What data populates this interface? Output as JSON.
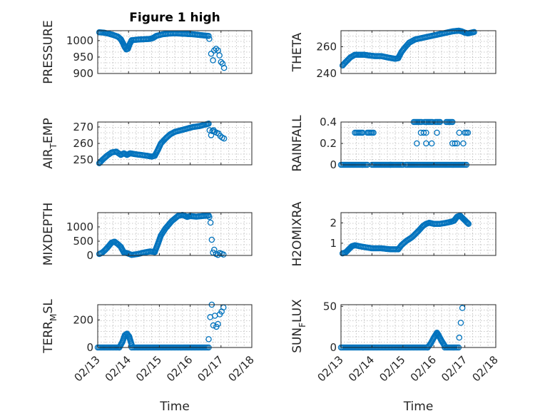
{
  "figure": {
    "title": "Figure 1 high"
  },
  "chart_data": [
    {
      "id": "pressure",
      "type": "scatter",
      "title": "Figure 1 high",
      "xlabel": "",
      "ylabel": "PRESSURE",
      "ylabel_sub": "",
      "ylabel_tail": "",
      "xlim": [
        0,
        5
      ],
      "ylim": [
        900,
        1030
      ],
      "yticks": [
        900,
        950,
        1000
      ],
      "ytick_labels": [
        "900",
        "950",
        "1000"
      ],
      "show_xtick_labels": false,
      "grid": true,
      "marker_color": "#0072bd",
      "segments": [
        {
          "x": [
            0.05,
            0.2,
            0.35,
            0.5,
            0.65,
            0.75
          ],
          "y": [
            1025,
            1024,
            1021,
            1017,
            1012,
            1004
          ]
        },
        {
          "x": [
            0.75,
            0.82,
            0.88,
            0.93,
            0.98,
            1.03
          ],
          "y": [
            1004,
            992,
            980,
            973,
            975,
            988
          ]
        },
        {
          "x": [
            1.03,
            1.1,
            1.3,
            1.5,
            1.7,
            1.8
          ],
          "y": [
            988,
            1001,
            1003,
            1004,
            1005,
            1008
          ]
        },
        {
          "x": [
            1.8,
            1.9,
            2.1,
            2.3,
            2.5,
            2.7,
            2.9,
            3.1,
            3.3,
            3.6
          ],
          "y": [
            1008,
            1014,
            1019,
            1021,
            1022,
            1021,
            1020,
            1019,
            1017,
            1014
          ]
        }
      ],
      "points": [
        {
          "x": 3.62,
          "y": 1005
        },
        {
          "x": 3.68,
          "y": 960
        },
        {
          "x": 3.74,
          "y": 940
        },
        {
          "x": 3.78,
          "y": 970
        },
        {
          "x": 3.84,
          "y": 975
        },
        {
          "x": 3.9,
          "y": 970
        },
        {
          "x": 3.95,
          "y": 955
        },
        {
          "x": 4.0,
          "y": 935
        },
        {
          "x": 4.05,
          "y": 930
        },
        {
          "x": 4.1,
          "y": 917
        }
      ]
    },
    {
      "id": "theta",
      "type": "scatter",
      "title": "",
      "xlabel": "",
      "ylabel": "THETA",
      "ylabel_sub": "",
      "ylabel_tail": "",
      "xlim": [
        0,
        5
      ],
      "ylim": [
        240,
        272
      ],
      "yticks": [
        240,
        260
      ],
      "ytick_labels": [
        "240",
        "260"
      ],
      "show_xtick_labels": false,
      "grid": true,
      "marker_color": "#0072bd",
      "segments": [
        {
          "x": [
            0.05,
            0.15,
            0.3,
            0.45,
            0.6,
            0.75,
            0.9,
            1.1,
            1.3,
            1.5,
            1.75,
            1.85
          ],
          "y": [
            246,
            248.5,
            252,
            254,
            254,
            254,
            253.5,
            253,
            253,
            252,
            251,
            251.5
          ]
        },
        {
          "x": [
            1.85,
            1.95,
            2.05,
            2.2,
            2.4,
            2.6,
            2.8,
            3.0,
            3.2,
            3.4,
            3.6,
            3.8,
            3.9,
            4.0,
            4.1,
            4.2,
            4.3
          ],
          "y": [
            251.5,
            256,
            259,
            263,
            265.5,
            266.5,
            267.5,
            268.5,
            269.5,
            270.5,
            271.5,
            272,
            271.5,
            270.5,
            270,
            270.5,
            271
          ]
        }
      ],
      "points": []
    },
    {
      "id": "airtemp",
      "type": "scatter",
      "title": "",
      "xlabel": "",
      "ylabel": "AIR",
      "ylabel_sub": "T",
      "ylabel_tail": "EMP",
      "xlim": [
        0,
        5
      ],
      "ylim": [
        247,
        273
      ],
      "yticks": [
        250,
        260,
        270
      ],
      "ytick_labels": [
        "250",
        "260",
        "270"
      ],
      "show_xtick_labels": false,
      "grid": true,
      "marker_color": "#0072bd",
      "segments": [
        {
          "x": [
            0.05,
            0.15,
            0.3,
            0.45,
            0.6,
            0.75,
            0.85,
            0.95,
            1.05,
            1.2,
            1.4,
            1.6,
            1.75,
            1.85
          ],
          "y": [
            248,
            250,
            252.5,
            254.5,
            255,
            253,
            254,
            253,
            254,
            253.5,
            253,
            252.5,
            252,
            252.5
          ]
        },
        {
          "x": [
            1.85,
            1.95,
            2.05,
            2.2,
            2.35,
            2.5,
            2.7,
            2.9,
            3.1,
            3.3,
            3.5,
            3.6
          ],
          "y": [
            252.5,
            256,
            260,
            263,
            265.5,
            267,
            268,
            269,
            270,
            270.5,
            271.5,
            272
          ]
        }
      ],
      "points": [
        {
          "x": 3.63,
          "y": 268
        },
        {
          "x": 3.68,
          "y": 265
        },
        {
          "x": 3.72,
          "y": 267.5
        },
        {
          "x": 3.76,
          "y": 268
        },
        {
          "x": 3.8,
          "y": 267
        },
        {
          "x": 3.86,
          "y": 266.5
        },
        {
          "x": 3.92,
          "y": 266
        },
        {
          "x": 3.98,
          "y": 264.5
        },
        {
          "x": 4.04,
          "y": 263.5
        },
        {
          "x": 4.1,
          "y": 263
        }
      ]
    },
    {
      "id": "rainfall",
      "type": "scatter",
      "title": "",
      "xlabel": "",
      "ylabel": "RAINFALL",
      "ylabel_sub": "",
      "ylabel_tail": "",
      "xlim": [
        0,
        5
      ],
      "ylim": [
        0,
        0.4
      ],
      "yticks": [
        0,
        0.2,
        0.4
      ],
      "ytick_labels": [
        "0",
        "0.2",
        "0.4"
      ],
      "show_xtick_labels": false,
      "grid": true,
      "marker_color": "#0072bd",
      "segments": [
        {
          "x": [
            0.0,
            0.85
          ],
          "y": [
            0,
            0
          ]
        },
        {
          "x": [
            1.0,
            1.6
          ],
          "y": [
            0,
            0
          ]
        },
        {
          "x": [
            1.6,
            2.0
          ],
          "y": [
            0,
            0
          ]
        },
        {
          "x": [
            2.1,
            3.5
          ],
          "y": [
            0,
            0
          ]
        },
        {
          "x": [
            3.55,
            4.05
          ],
          "y": [
            0,
            0
          ]
        },
        {
          "x": [
            0.45,
            0.7
          ],
          "y": [
            0.3,
            0.3
          ]
        },
        {
          "x": [
            0.85,
            1.05
          ],
          "y": [
            0.3,
            0.3
          ]
        },
        {
          "x": [
            2.35,
            2.6
          ],
          "y": [
            0.4,
            0.4
          ]
        },
        {
          "x": [
            2.7,
            2.95
          ],
          "y": [
            0.4,
            0.4
          ]
        },
        {
          "x": [
            3.05,
            3.2
          ],
          "y": [
            0.4,
            0.4
          ]
        },
        {
          "x": [
            3.4,
            3.6
          ],
          "y": [
            0.4,
            0.4
          ]
        }
      ],
      "points": [
        {
          "x": 2.58,
          "y": 0.3
        },
        {
          "x": 2.67,
          "y": 0.3
        },
        {
          "x": 2.75,
          "y": 0.3
        },
        {
          "x": 3.1,
          "y": 0.3
        },
        {
          "x": 3.82,
          "y": 0.3
        },
        {
          "x": 4.0,
          "y": 0.3
        },
        {
          "x": 4.05,
          "y": 0.3
        },
        {
          "x": 4.1,
          "y": 0.3
        },
        {
          "x": 2.45,
          "y": 0.2
        },
        {
          "x": 2.93,
          "y": 0.2
        },
        {
          "x": 3.6,
          "y": 0.2
        },
        {
          "x": 3.68,
          "y": 0.2
        },
        {
          "x": 3.75,
          "y": 0.2
        },
        {
          "x": 3.95,
          "y": 0.2
        },
        {
          "x": 2.75,
          "y": 0.2
        }
      ]
    },
    {
      "id": "mixdepth",
      "type": "scatter",
      "title": "",
      "xlabel": "",
      "ylabel": "MIXDEPTH",
      "ylabel_sub": "",
      "ylabel_tail": "",
      "xlim": [
        0,
        5
      ],
      "ylim": [
        0,
        1500
      ],
      "yticks": [
        0,
        500,
        1000
      ],
      "ytick_labels": [
        "0",
        "500",
        "1000"
      ],
      "show_xtick_labels": false,
      "grid": true,
      "marker_color": "#0072bd",
      "segments": [
        {
          "x": [
            0.05,
            0.15,
            0.25,
            0.35,
            0.45,
            0.55,
            0.65,
            0.75
          ],
          "y": [
            50,
            100,
            200,
            320,
            450,
            480,
            400,
            300
          ]
        },
        {
          "x": [
            0.75,
            0.85,
            0.95,
            1.1,
            1.3,
            1.5,
            1.7,
            1.85
          ],
          "y": [
            300,
            100,
            80,
            20,
            50,
            100,
            140,
            120
          ]
        },
        {
          "x": [
            1.85,
            1.95,
            2.05,
            2.2,
            2.4,
            2.6,
            2.75,
            2.9,
            3.0,
            3.2,
            3.4,
            3.6
          ],
          "y": [
            120,
            400,
            700,
            950,
            1200,
            1380,
            1420,
            1350,
            1380,
            1360,
            1380,
            1400
          ]
        }
      ],
      "points": [
        {
          "x": 3.62,
          "y": 1350
        },
        {
          "x": 3.66,
          "y": 1150
        },
        {
          "x": 3.7,
          "y": 550
        },
        {
          "x": 3.74,
          "y": 100
        },
        {
          "x": 3.78,
          "y": 200
        },
        {
          "x": 3.84,
          "y": 50
        },
        {
          "x": 3.9,
          "y": 20
        },
        {
          "x": 3.96,
          "y": 80
        },
        {
          "x": 4.02,
          "y": 60
        },
        {
          "x": 4.08,
          "y": 30
        }
      ]
    },
    {
      "id": "h2omixra",
      "type": "scatter",
      "title": "",
      "xlabel": "",
      "ylabel": "H2OMIXRA",
      "ylabel_sub": "",
      "ylabel_tail": "",
      "xlim": [
        0,
        5
      ],
      "ylim": [
        0.4,
        2.5
      ],
      "yticks": [
        1,
        2
      ],
      "ytick_labels": [
        "1",
        "2"
      ],
      "show_xtick_labels": false,
      "grid": true,
      "marker_color": "#0072bd",
      "segments": [
        {
          "x": [
            0.05,
            0.15,
            0.25,
            0.35,
            0.45,
            0.6,
            0.8,
            1.0,
            1.3,
            1.6,
            1.85
          ],
          "y": [
            0.5,
            0.55,
            0.7,
            0.85,
            0.9,
            0.85,
            0.8,
            0.75,
            0.75,
            0.7,
            0.7
          ]
        },
        {
          "x": [
            1.85,
            1.95,
            2.1,
            2.3,
            2.5,
            2.65,
            2.75,
            2.85,
            3.0,
            3.2,
            3.4,
            3.55,
            3.65
          ],
          "y": [
            0.7,
            0.9,
            1.1,
            1.3,
            1.6,
            1.85,
            1.95,
            2.0,
            1.95,
            1.95,
            2.0,
            2.05,
            2.1
          ]
        },
        {
          "x": [
            3.65,
            3.75,
            3.85,
            3.95,
            4.05,
            4.12
          ],
          "y": [
            2.1,
            2.3,
            2.35,
            2.2,
            2.05,
            1.95
          ]
        }
      ],
      "points": []
    },
    {
      "id": "terrmsl",
      "type": "scatter",
      "title": "",
      "xlabel": "Time",
      "ylabel": "TERR",
      "ylabel_sub": "M",
      "ylabel_tail": "SL",
      "xlim": [
        0,
        5
      ],
      "ylim": [
        0,
        310
      ],
      "yticks": [
        0,
        200
      ],
      "ytick_labels": [
        "0",
        "200"
      ],
      "xticks": [
        0,
        1,
        2,
        3,
        4,
        5
      ],
      "xtick_labels": [
        "02/13",
        "02/14",
        "02/15",
        "02/16",
        "02/17",
        "02/18"
      ],
      "show_xtick_labels": true,
      "grid": true,
      "marker_color": "#0072bd",
      "segments": [
        {
          "x": [
            0.0,
            0.7
          ],
          "y": [
            0,
            0
          ]
        },
        {
          "x": [
            0.7,
            0.8,
            0.88,
            0.95,
            1.02,
            1.1
          ],
          "y": [
            0,
            40,
            90,
            100,
            80,
            20
          ]
        },
        {
          "x": [
            1.1,
            3.6
          ],
          "y": [
            0,
            0
          ]
        }
      ],
      "points": [
        {
          "x": 3.6,
          "y": 60
        },
        {
          "x": 3.65,
          "y": 220
        },
        {
          "x": 3.7,
          "y": 310
        },
        {
          "x": 3.75,
          "y": 160
        },
        {
          "x": 3.8,
          "y": 230
        },
        {
          "x": 3.85,
          "y": 150
        },
        {
          "x": 3.9,
          "y": 170
        },
        {
          "x": 3.96,
          "y": 240
        },
        {
          "x": 4.02,
          "y": 260
        },
        {
          "x": 4.08,
          "y": 290
        }
      ]
    },
    {
      "id": "sunflux",
      "type": "scatter",
      "title": "",
      "xlabel": "Time",
      "ylabel": "SUN",
      "ylabel_sub": "F",
      "ylabel_tail": "LUX",
      "xlim": [
        0,
        5
      ],
      "ylim": [
        0,
        52
      ],
      "yticks": [
        0,
        50
      ],
      "ytick_labels": [
        "0",
        "50"
      ],
      "xticks": [
        0,
        1,
        2,
        3,
        4,
        5
      ],
      "xtick_labels": [
        "02/13",
        "02/14",
        "02/15",
        "02/16",
        "02/17",
        "02/18"
      ],
      "show_xtick_labels": true,
      "grid": true,
      "marker_color": "#0072bd",
      "segments": [
        {
          "x": [
            0.0,
            2.8
          ],
          "y": [
            0,
            0
          ]
        },
        {
          "x": [
            2.8,
            2.9,
            3.0,
            3.1,
            3.15,
            3.25,
            3.35
          ],
          "y": [
            0,
            5,
            12,
            18,
            15,
            8,
            2
          ]
        },
        {
          "x": [
            3.35,
            3.8
          ],
          "y": [
            0,
            0
          ]
        }
      ],
      "points": [
        {
          "x": 3.82,
          "y": 12
        },
        {
          "x": 3.87,
          "y": 30
        },
        {
          "x": 3.92,
          "y": 48
        }
      ]
    }
  ]
}
